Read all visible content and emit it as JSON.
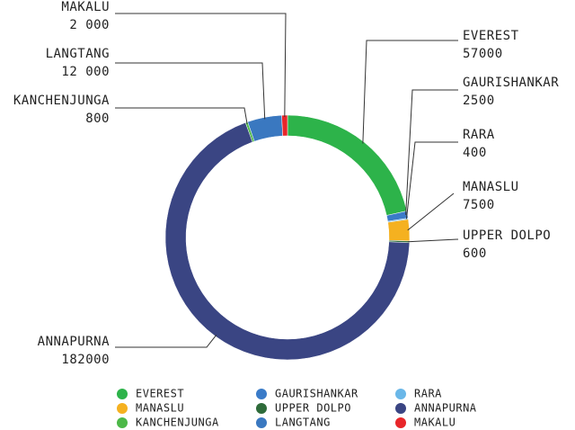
{
  "chart_data": {
    "type": "pie",
    "categories": [
      "EVEREST",
      "GAURISHANKAR",
      "RARA",
      "MANASLU",
      "UPPER DOLPO",
      "ANNAPURNA",
      "KANCHENJUNGA",
      "LANGTANG",
      "MAKALU"
    ],
    "values": [
      57000,
      2500,
      400,
      7500,
      600,
      182000,
      800,
      12000,
      2000
    ],
    "value_labels": [
      "57000",
      "2500",
      "400",
      "7500",
      "600",
      "182000",
      "800",
      "12 000",
      "2 000"
    ],
    "colors": [
      "#2db34a",
      "#3a7bc8",
      "#6ab7e8",
      "#f5b120",
      "#2e6b3a",
      "#3a4583",
      "#4cb848",
      "#3a78c0",
      "#e8262a"
    ],
    "legend": "bottom"
  }
}
